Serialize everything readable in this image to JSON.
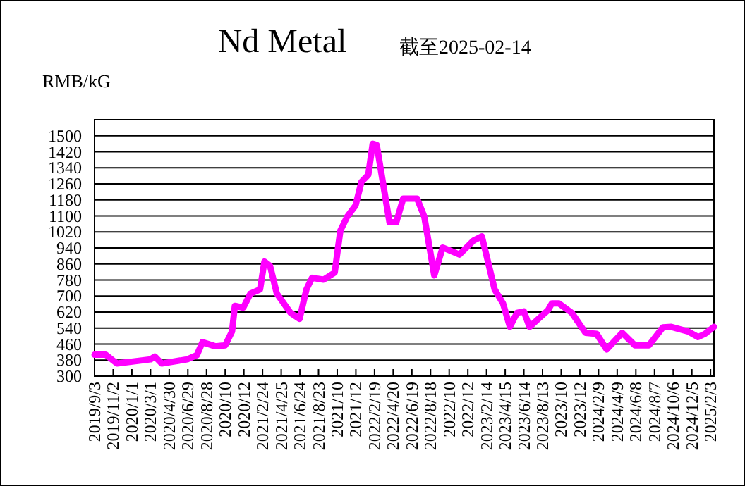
{
  "chart_data": {
    "type": "line",
    "title": "Nd Metal",
    "subtitle": "截至2025-02-14",
    "ylabel": "RMB/kG",
    "xlim": [
      "2019-09-03",
      "2025-02-14"
    ],
    "xticks": [
      {
        "value": "2019-09-03",
        "label": "2019/9/3"
      },
      {
        "value": "2019-11-02",
        "label": "2019/11/2"
      },
      {
        "value": "2020-01-01",
        "label": "2020/1/1"
      },
      {
        "value": "2020-03-01",
        "label": "2020/3/1"
      },
      {
        "value": "2020-04-30",
        "label": "2020/4/30"
      },
      {
        "value": "2020-06-29",
        "label": "2020/6/29"
      },
      {
        "value": "2020-08-28",
        "label": "2020/8/28"
      },
      {
        "value": "2020-10-27",
        "label": "2020/10"
      },
      {
        "value": "2020-12-26",
        "label": "2020/12"
      },
      {
        "value": "2021-02-24",
        "label": "2021/2/24"
      },
      {
        "value": "2021-04-25",
        "label": "2021/4/25"
      },
      {
        "value": "2021-06-24",
        "label": "2021/6/24"
      },
      {
        "value": "2021-08-23",
        "label": "2021/8/23"
      },
      {
        "value": "2021-10-22",
        "label": "2021/10"
      },
      {
        "value": "2021-12-21",
        "label": "2021/12"
      },
      {
        "value": "2022-02-19",
        "label": "2022/2/19"
      },
      {
        "value": "2022-04-20",
        "label": "2022/4/20"
      },
      {
        "value": "2022-06-19",
        "label": "2022/6/19"
      },
      {
        "value": "2022-08-18",
        "label": "2022/8/18"
      },
      {
        "value": "2022-10-17",
        "label": "2022/10"
      },
      {
        "value": "2022-12-16",
        "label": "2022/12"
      },
      {
        "value": "2023-02-14",
        "label": "2023/2/14"
      },
      {
        "value": "2023-04-15",
        "label": "2023/4/15"
      },
      {
        "value": "2023-06-14",
        "label": "2023/6/14"
      },
      {
        "value": "2023-08-13",
        "label": "2023/8/13"
      },
      {
        "value": "2023-10-12",
        "label": "2023/10"
      },
      {
        "value": "2023-12-11",
        "label": "2023/12"
      },
      {
        "value": "2024-02-09",
        "label": "2024/2/9"
      },
      {
        "value": "2024-04-09",
        "label": "2024/4/9"
      },
      {
        "value": "2024-06-08",
        "label": "2024/6/8"
      },
      {
        "value": "2024-08-07",
        "label": "2024/8/7"
      },
      {
        "value": "2024-10-06",
        "label": "2024/10/6"
      },
      {
        "value": "2024-12-05",
        "label": "2024/12/5"
      },
      {
        "value": "2025-02-03",
        "label": "2025/2/3"
      }
    ],
    "ylim": [
      300,
      1580
    ],
    "yticks": [
      300,
      380,
      460,
      540,
      620,
      700,
      780,
      860,
      940,
      1020,
      1100,
      1180,
      1260,
      1340,
      1420,
      1500
    ],
    "grid": "y",
    "line_style": "solid",
    "series": [
      {
        "color": "#ff00ff",
        "x": [
          "2019-09-03",
          "2019-10-09",
          "2019-11-14",
          "2020-03-01",
          "2020-03-15",
          "2020-04-06",
          "2020-06-27",
          "2020-07-28",
          "2020-08-15",
          "2020-09-25",
          "2020-10-27",
          "2020-11-18",
          "2020-11-27",
          "2020-12-24",
          "2021-01-16",
          "2021-02-16",
          "2021-03-02",
          "2021-03-20",
          "2021-04-11",
          "2021-05-25",
          "2021-06-23",
          "2021-07-15",
          "2021-08-02",
          "2021-09-08",
          "2021-10-14",
          "2021-11-01",
          "2021-11-23",
          "2021-12-20",
          "2022-01-08",
          "2022-01-30",
          "2022-02-13",
          "2022-02-26",
          "2022-04-08",
          "2022-04-30",
          "2022-05-22",
          "2022-07-06",
          "2022-07-29",
          "2022-08-30",
          "2022-09-26",
          "2022-11-19",
          "2023-01-03",
          "2023-01-30",
          "2023-03-12",
          "2023-04-08",
          "2023-04-30",
          "2023-05-23",
          "2023-06-14",
          "2023-07-02",
          "2023-08-30",
          "2023-09-12",
          "2023-10-05",
          "2023-11-15",
          "2023-12-29",
          "2024-02-03",
          "2024-03-06",
          "2024-04-25",
          "2024-06-05",
          "2024-07-20",
          "2024-09-03",
          "2024-09-30",
          "2024-11-23",
          "2024-12-25",
          "2025-01-16",
          "2025-02-14"
        ],
        "values": [
          407,
          407,
          363,
          384,
          398,
          363,
          384,
          405,
          470,
          449,
          454,
          523,
          651,
          642,
          712,
          733,
          872,
          851,
          712,
          616,
          586,
          733,
          791,
          782,
          817,
          1026,
          1096,
          1152,
          1270,
          1305,
          1460,
          1454,
          1068,
          1068,
          1186,
          1186,
          1096,
          803,
          942,
          907,
          977,
          998,
          733,
          663,
          546,
          616,
          623,
          546,
          628,
          663,
          663,
          616,
          516,
          511,
          433,
          516,
          454,
          454,
          544,
          546,
          523,
          495,
          511,
          546
        ]
      }
    ]
  }
}
